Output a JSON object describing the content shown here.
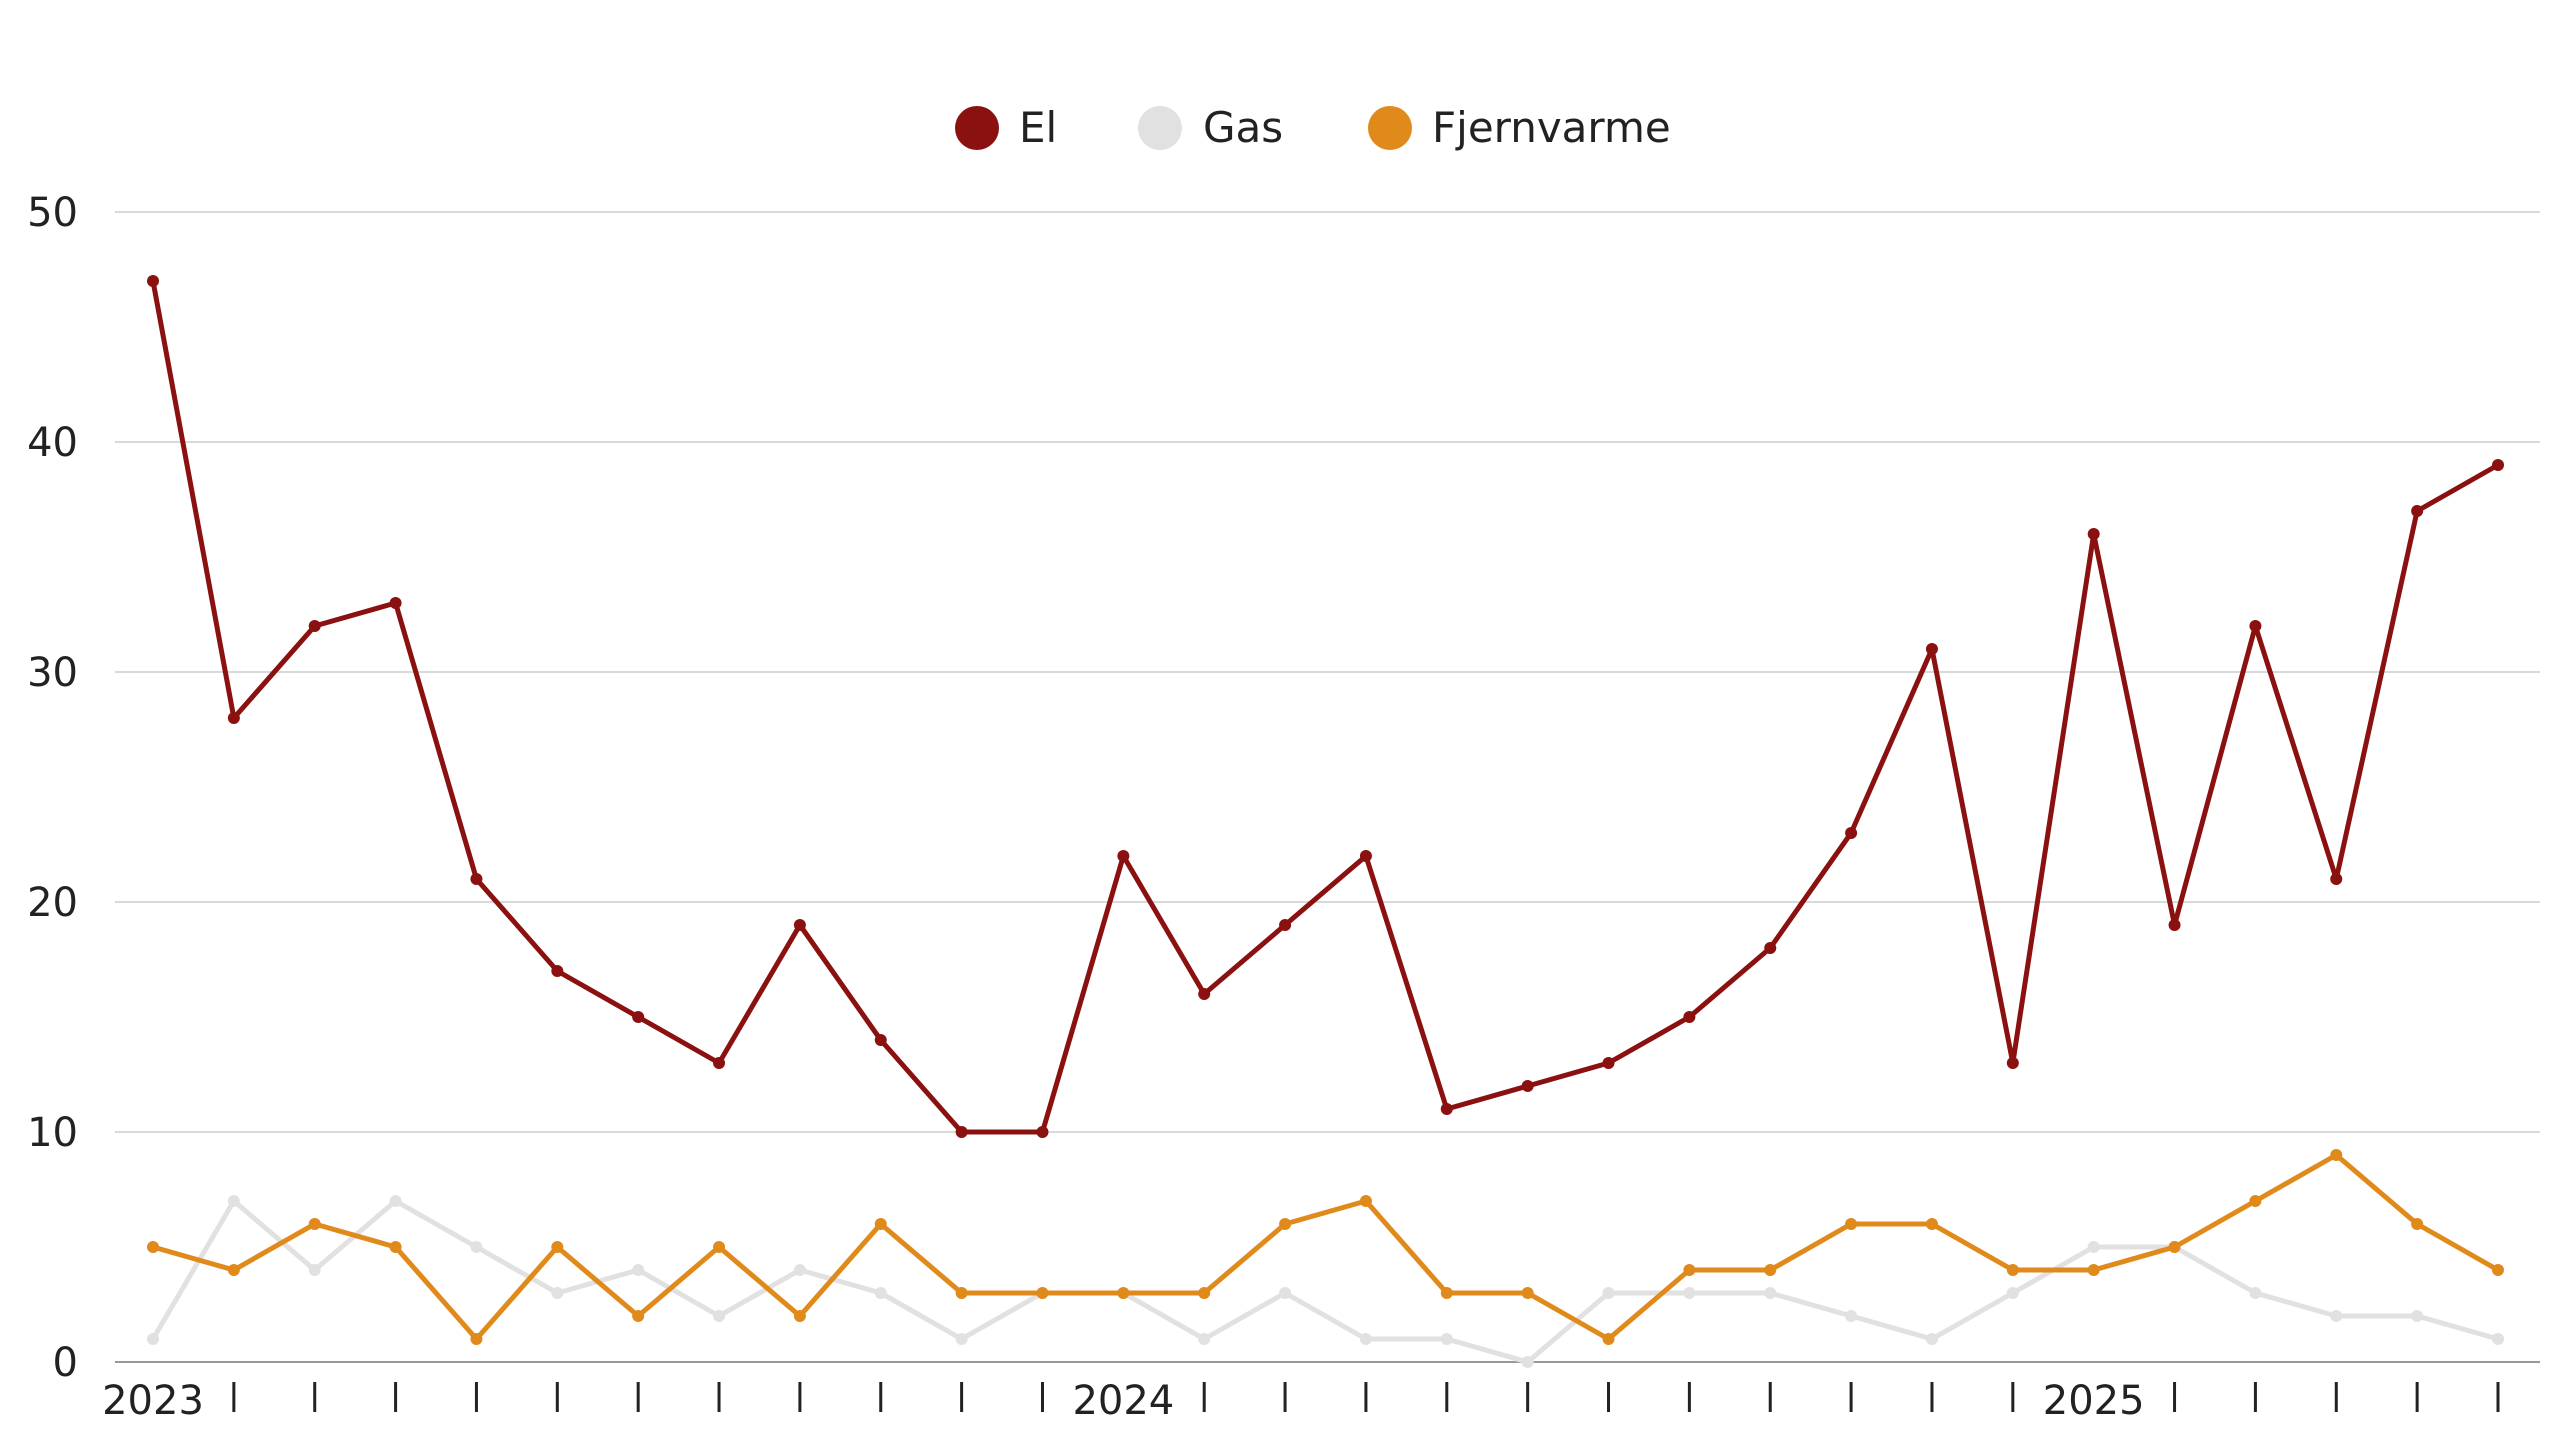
{
  "chart_data": {
    "type": "line",
    "title": "",
    "xlabel": "",
    "ylabel": "",
    "ylim": [
      0,
      50
    ],
    "yticks": [
      0,
      10,
      20,
      30,
      40,
      50
    ],
    "grid": true,
    "legend_position": "top-center",
    "x": [
      "2023-01",
      "2023-02",
      "2023-03",
      "2023-04",
      "2023-05",
      "2023-06",
      "2023-07",
      "2023-08",
      "2023-09",
      "2023-10",
      "2023-11",
      "2023-12",
      "2024-01",
      "2024-02",
      "2024-03",
      "2024-04",
      "2024-05",
      "2024-06",
      "2024-07",
      "2024-08",
      "2024-09",
      "2024-10",
      "2024-11",
      "2024-12",
      "2025-01",
      "2025-02",
      "2025-03",
      "2025-04",
      "2025-05",
      "2025-06"
    ],
    "x_tick_labels": [
      {
        "index": 0,
        "label": "2023"
      },
      {
        "index": 12,
        "label": "2024"
      },
      {
        "index": 24,
        "label": "2025"
      }
    ],
    "series": [
      {
        "name": "El",
        "color": "#8b1010",
        "values": [
          47,
          28,
          32,
          33,
          21,
          17,
          15,
          13,
          19,
          14,
          10,
          10,
          22,
          16,
          19,
          22,
          11,
          12,
          13,
          15,
          18,
          23,
          31,
          13,
          36,
          19,
          32,
          21,
          37,
          39
        ]
      },
      {
        "name": "Gas",
        "color": "#e1e1e1",
        "values": [
          1,
          7,
          4,
          7,
          5,
          3,
          4,
          2,
          4,
          3,
          1,
          3,
          3,
          1,
          3,
          1,
          1,
          0,
          3,
          3,
          3,
          2,
          1,
          3,
          5,
          5,
          3,
          2,
          2,
          1
        ]
      },
      {
        "name": "Fjernvarme",
        "color": "#e08a1c",
        "values": [
          5,
          4,
          6,
          5,
          1,
          5,
          2,
          5,
          2,
          6,
          3,
          3,
          3,
          3,
          6,
          7,
          3,
          3,
          1,
          4,
          4,
          6,
          6,
          4,
          4,
          5,
          7,
          9,
          6,
          4
        ]
      }
    ]
  }
}
